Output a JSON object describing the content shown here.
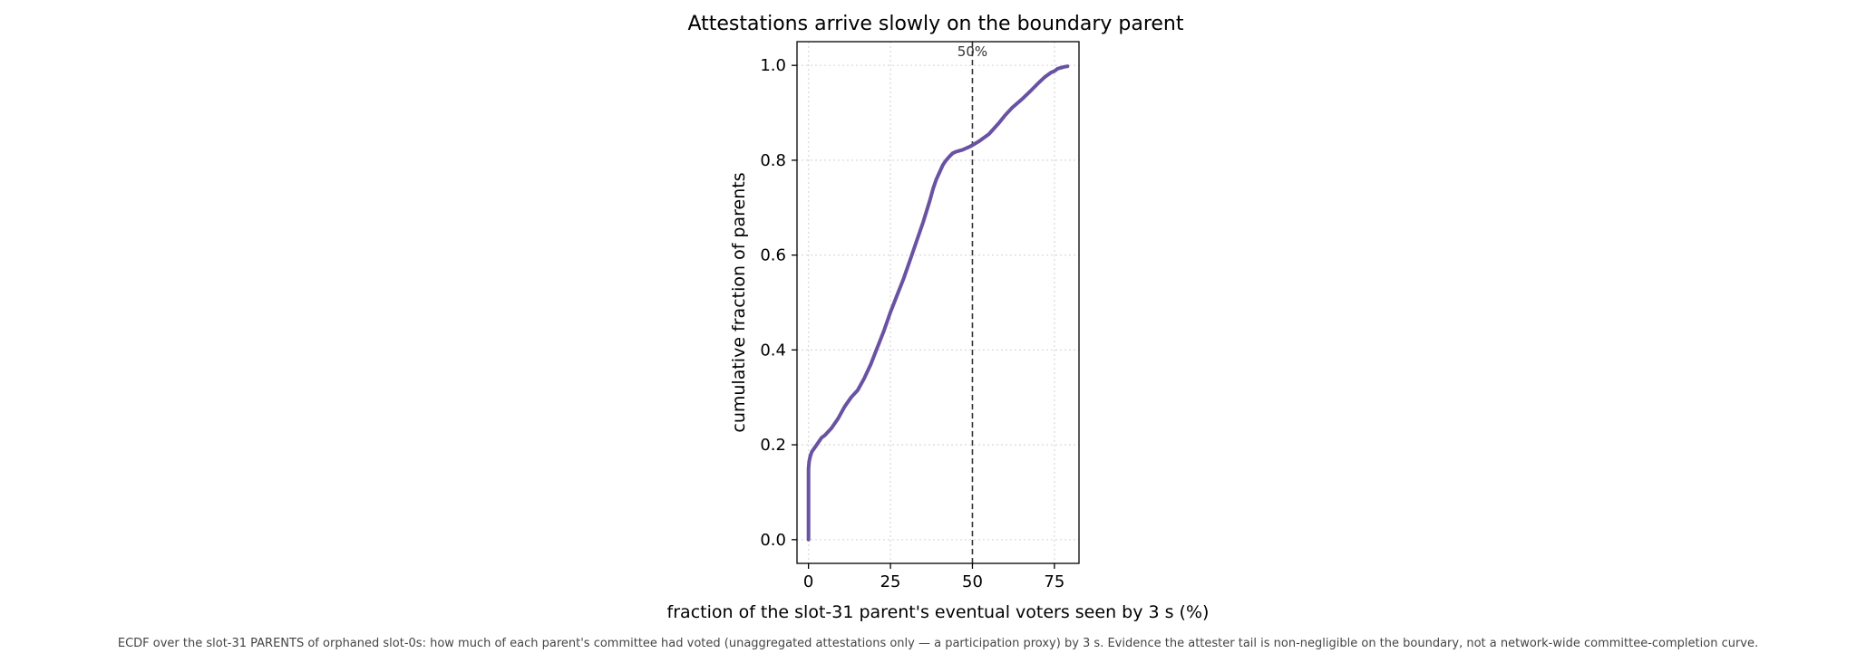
{
  "chart_data": {
    "type": "line",
    "title": "Attestations arrive slowly on the boundary parent",
    "xlabel": "fraction of the slot-31 parent's eventual voters seen by 3 s  (%)",
    "ylabel": "cumulative fraction of parents",
    "caption": "ECDF over the slot-31 PARENTS of orphaned slot-0s: how much of each parent's committee had voted (unaggregated attestations only — a participation proxy) by 3 s. Evidence the attester tail is non-negligible on the boundary, not a network-wide committee-completion curve.",
    "xlim": [
      -3.5,
      82.5
    ],
    "ylim": [
      -0.05,
      1.05
    ],
    "xticks": [
      0,
      25,
      50,
      75
    ],
    "yticks": [
      0.0,
      0.2,
      0.4,
      0.6,
      0.8,
      1.0
    ],
    "ytick_labels": [
      "0.0",
      "0.2",
      "0.4",
      "0.6",
      "0.8",
      "1.0"
    ],
    "grid": true,
    "reference_line": {
      "x": 50,
      "label": "50%",
      "style": "dashed",
      "color": "#333333"
    },
    "series": [
      {
        "color": "#6a52a3",
        "x": [
          0,
          0,
          0.2,
          0.5,
          1,
          2,
          3,
          4,
          5,
          7,
          9,
          11,
          13,
          15,
          17,
          19,
          21,
          23,
          25,
          27,
          29,
          31,
          33,
          35,
          37,
          38,
          39,
          40,
          41,
          42,
          43,
          44,
          45,
          46,
          47,
          48,
          49,
          50,
          52,
          55,
          58,
          60,
          62,
          65,
          68,
          70,
          72,
          74,
          75,
          76,
          77,
          78,
          79
        ],
        "y": [
          0.0,
          0.15,
          0.165,
          0.175,
          0.185,
          0.195,
          0.205,
          0.215,
          0.22,
          0.235,
          0.255,
          0.28,
          0.3,
          0.315,
          0.34,
          0.37,
          0.405,
          0.44,
          0.48,
          0.515,
          0.55,
          0.59,
          0.63,
          0.67,
          0.715,
          0.74,
          0.76,
          0.775,
          0.79,
          0.8,
          0.808,
          0.815,
          0.818,
          0.82,
          0.822,
          0.825,
          0.828,
          0.832,
          0.84,
          0.855,
          0.878,
          0.895,
          0.91,
          0.928,
          0.948,
          0.962,
          0.975,
          0.985,
          0.988,
          0.993,
          0.995,
          0.997,
          0.998
        ]
      }
    ]
  }
}
